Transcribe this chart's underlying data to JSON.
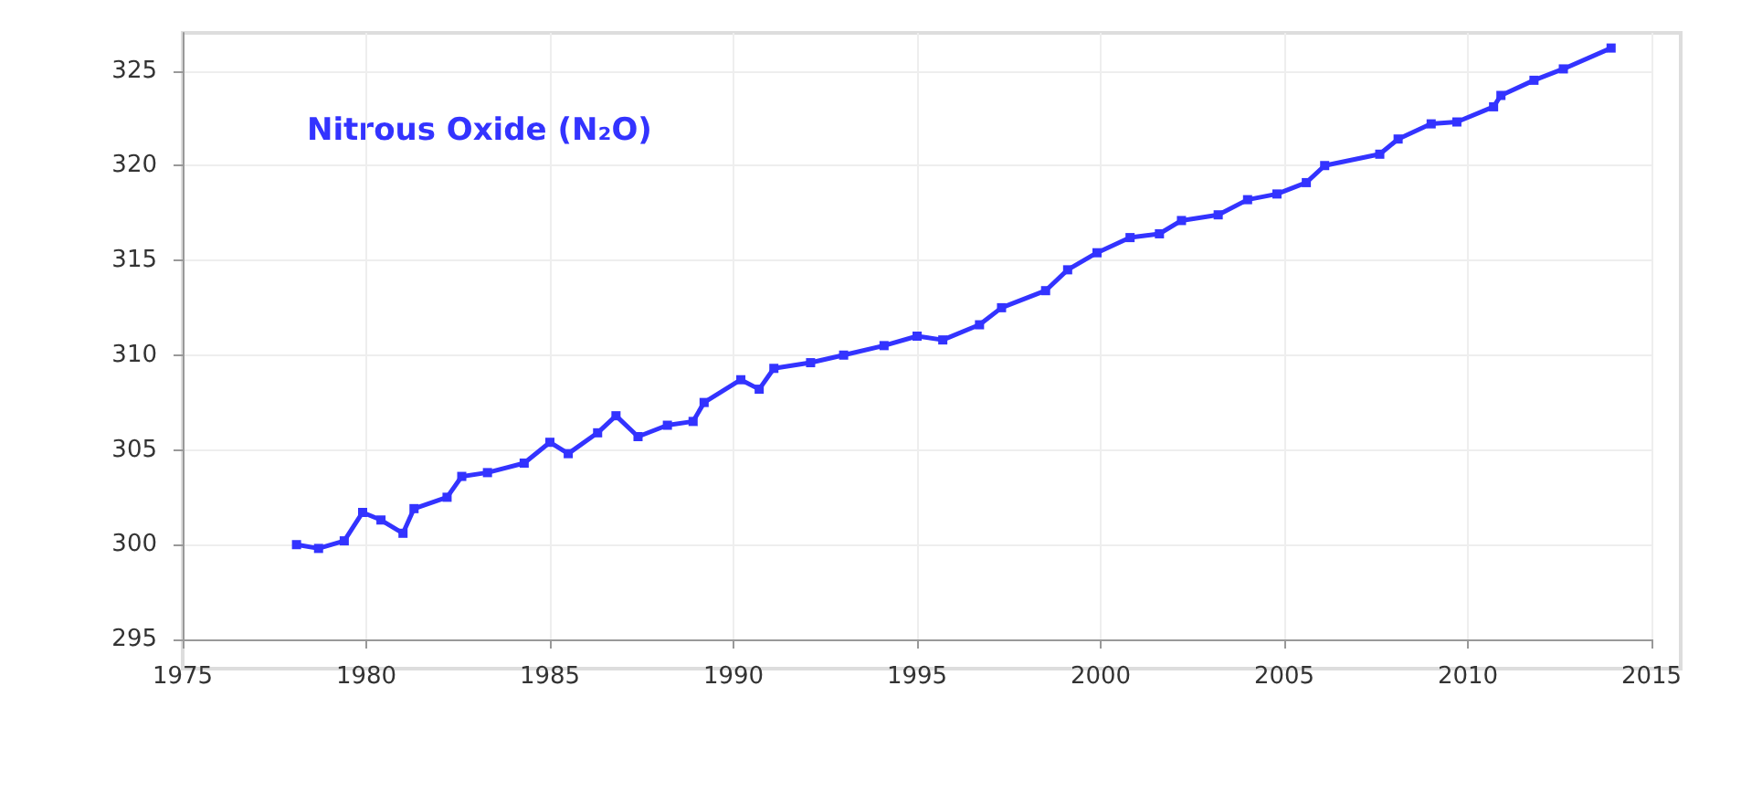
{
  "chart_data": {
    "type": "line",
    "annotations": [
      "Nitrous Oxide (N₂O)"
    ],
    "x": [
      1978.1,
      1978.7,
      1979.4,
      1979.9,
      1980.4,
      1981.0,
      1981.3,
      1982.2,
      1982.6,
      1983.3,
      1984.3,
      1985.0,
      1985.5,
      1986.3,
      1986.8,
      1987.4,
      1988.2,
      1988.9,
      1989.2,
      1990.2,
      1990.7,
      1991.1,
      1992.1,
      1993.0,
      1994.1,
      1995.0,
      1995.7,
      1996.7,
      1997.3,
      1998.5,
      1999.1,
      1999.9,
      2000.8,
      2001.6,
      2002.2,
      2003.2,
      2004.0,
      2004.8,
      2005.6,
      2006.1,
      2007.6,
      2008.1,
      2009.0,
      2009.7,
      2010.7,
      2010.9,
      2011.8,
      2012.6,
      2013.9
    ],
    "series": [
      {
        "color": "#3333ff",
        "values": [
          300.0,
          299.8,
          300.2,
          301.7,
          301.3,
          300.6,
          301.9,
          302.5,
          303.6,
          303.8,
          304.3,
          305.4,
          304.8,
          305.9,
          306.8,
          305.7,
          306.3,
          306.5,
          307.5,
          308.7,
          308.2,
          309.3,
          309.6,
          310.0,
          310.5,
          311.0,
          310.8,
          311.6,
          312.5,
          313.4,
          314.5,
          315.4,
          316.2,
          316.4,
          317.1,
          317.4,
          318.2,
          318.5,
          319.1,
          320.0,
          320.6,
          321.4,
          322.2,
          322.3,
          323.1,
          323.7,
          324.5,
          325.1,
          326.2
        ]
      }
    ],
    "xlim": [
      1975,
      2015
    ],
    "xticks": [
      1975,
      1980,
      1985,
      1990,
      1995,
      2000,
      2005,
      2010,
      2015
    ],
    "ylim": [
      295,
      327
    ],
    "yticks": [
      295,
      300,
      305,
      310,
      315,
      320,
      325
    ],
    "grid": true,
    "marker": "square",
    "line_style": "solid"
  }
}
